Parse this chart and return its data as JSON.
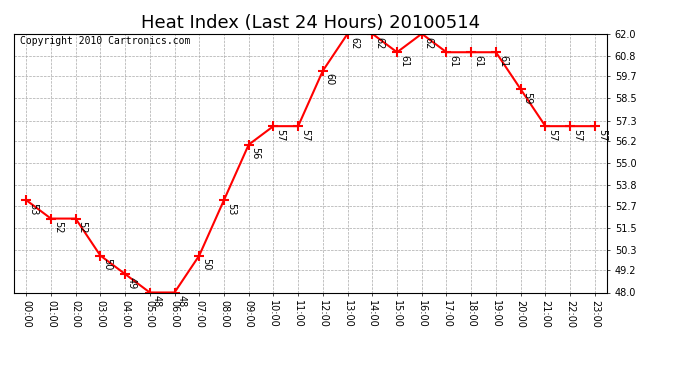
{
  "title": "Heat Index (Last 24 Hours) 20100514",
  "copyright": "Copyright 2010 Cartronics.com",
  "x_labels": [
    "00:00",
    "01:00",
    "02:00",
    "03:00",
    "04:00",
    "05:00",
    "06:00",
    "07:00",
    "08:00",
    "09:00",
    "10:00",
    "11:00",
    "12:00",
    "13:00",
    "14:00",
    "15:00",
    "16:00",
    "17:00",
    "18:00",
    "19:00",
    "20:00",
    "21:00",
    "22:00",
    "23:00"
  ],
  "y_values": [
    53,
    52,
    52,
    50,
    49,
    48,
    48,
    50,
    53,
    56,
    57,
    57,
    60,
    62,
    62,
    61,
    62,
    61,
    61,
    61,
    59,
    57,
    57,
    57
  ],
  "ylim_min": 48.0,
  "ylim_max": 62.0,
  "yticks": [
    48.0,
    49.2,
    50.3,
    51.5,
    52.7,
    53.8,
    55.0,
    56.2,
    57.3,
    58.5,
    59.7,
    60.8,
    62.0
  ],
  "line_color": "red",
  "marker": "+",
  "marker_size": 7,
  "marker_color": "red",
  "grid_color": "#aaaaaa",
  "bg_color": "white",
  "plot_bg_color": "white",
  "title_fontsize": 13,
  "label_fontsize": 7,
  "copyright_fontsize": 7,
  "data_label_fontsize": 7
}
